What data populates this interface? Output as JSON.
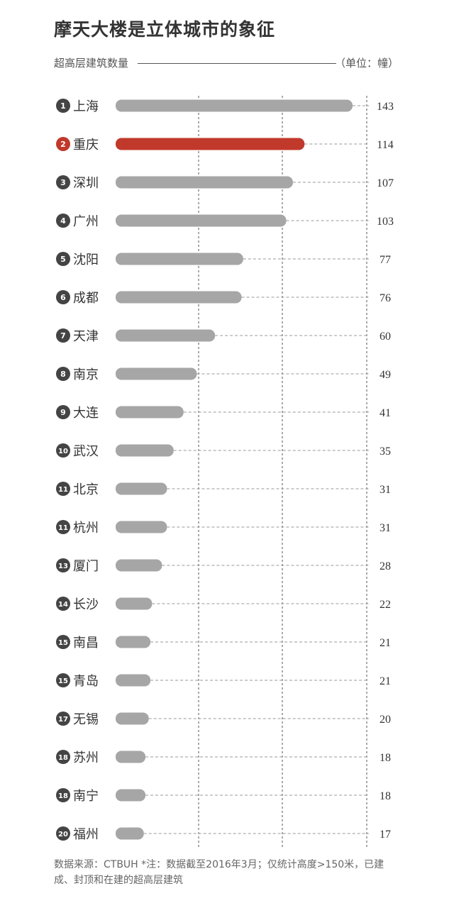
{
  "title": "摩天大楼是立体城市的象征",
  "subtitle": "超高层建筑数量",
  "unit": "（单位：幢）",
  "footnote": "数据来源：CTBUH *注：数据截至2016年3月；仅统计高度>150米，已建成、封顶和在建的超高层建筑",
  "colors": {
    "bar": "#a6a6a6",
    "highlight": "#c0392b",
    "rank_badge": "#444444",
    "text": "#333333"
  },
  "chart_data": {
    "type": "bar",
    "orientation": "horizontal",
    "title": "摩天大楼是立体城市的象征",
    "xlabel": "超高层建筑数量",
    "unit": "（单位：幢）",
    "highlight": "重庆",
    "grid": true,
    "categories": [
      "上海",
      "重庆",
      "深圳",
      "广州",
      "沈阳",
      "成都",
      "天津",
      "南京",
      "大连",
      "武汉",
      "北京",
      "杭州",
      "厦门",
      "长沙",
      "南昌",
      "青岛",
      "无锡",
      "苏州",
      "南宁",
      "福州"
    ],
    "ranks": [
      "1",
      "2",
      "3",
      "4",
      "5",
      "6",
      "7",
      "8",
      "9",
      "10",
      "11",
      "11",
      "13",
      "14",
      "15",
      "15",
      "17",
      "18",
      "18",
      "20"
    ],
    "values": [
      143,
      114,
      107,
      103,
      77,
      76,
      60,
      49,
      41,
      35,
      31,
      31,
      28,
      22,
      21,
      21,
      20,
      18,
      18,
      17
    ]
  }
}
